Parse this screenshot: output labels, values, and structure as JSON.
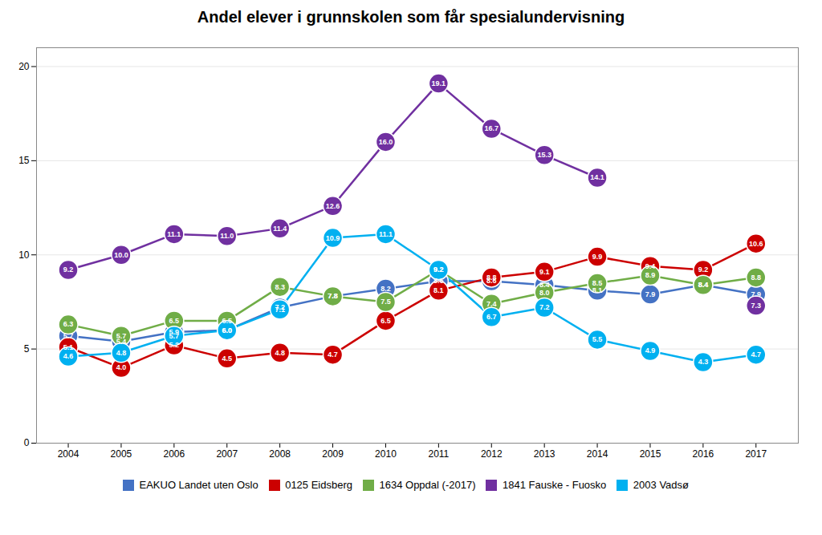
{
  "chart_data": {
    "type": "line",
    "title": "Andel elever i grunnskolen som får spesialundervisning",
    "x": [
      2004,
      2005,
      2006,
      2007,
      2008,
      2009,
      2010,
      2011,
      2012,
      2013,
      2014,
      2015,
      2016,
      2017
    ],
    "xlim": [
      2003.4,
      2017.8
    ],
    "xticks": [
      2004,
      2005,
      2006,
      2007,
      2008,
      2009,
      2010,
      2011,
      2012,
      2013,
      2014,
      2015,
      2016,
      2017
    ],
    "ylim": [
      0,
      21
    ],
    "yticks": [
      0,
      5,
      10,
      15,
      20
    ],
    "grid": true,
    "legend": "bottom",
    "data_labels": true,
    "marker": "circle",
    "series": [
      {
        "name": "EAKUO Landet uten Oslo",
        "color": "#4472C4",
        "values": [
          5.7,
          5.4,
          5.9,
          6.0,
          7.2,
          7.8,
          8.2,
          8.6,
          8.6,
          8.4,
          8.1,
          7.9,
          8.4,
          7.9
        ],
        "value_labels": [
          "5.7",
          "5.4",
          "5.9",
          "6.0",
          "7.2",
          "7.8",
          "8.2",
          "8.6",
          "8.6",
          "8.4",
          "8.1",
          "7.9",
          "8.4",
          "7.9"
        ]
      },
      {
        "name": "0125 Eidsberg",
        "color": "#CC0000",
        "values": [
          5.1,
          4.0,
          5.2,
          4.5,
          4.8,
          4.7,
          6.5,
          8.1,
          8.8,
          9.1,
          9.9,
          9.4,
          9.2,
          10.6
        ],
        "value_labels": [
          "5.1",
          "4.0",
          "5.2",
          "4.5",
          "4.8",
          "4.7",
          "6.5",
          "8.1",
          "8.8",
          "9.1",
          "9.9",
          "9.4",
          "9.2",
          "10.6"
        ]
      },
      {
        "name": "1634 Oppdal (-2017)",
        "color": "#70AD47",
        "values": [
          6.3,
          5.7,
          6.5,
          6.5,
          8.3,
          7.8,
          7.5,
          9.2,
          7.4,
          8.0,
          8.5,
          8.9,
          8.4,
          8.8
        ],
        "value_labels": [
          "6.3",
          "5.7",
          "6.5",
          "6.5",
          "8.3",
          "7.8",
          "7.5",
          "9.2",
          "7.4",
          "8.0",
          "8.5",
          "8.9",
          "8.4",
          "8.8"
        ]
      },
      {
        "name": "1841 Fauske - Fuosko",
        "color": "#7030A0",
        "values": [
          9.2,
          10.0,
          11.1,
          11.0,
          11.4,
          12.6,
          16.0,
          19.1,
          16.7,
          15.3,
          14.1,
          null,
          null,
          7.3
        ],
        "value_labels": [
          "9.2",
          "10.0",
          "11.1",
          "11.0",
          "11.4",
          "12.6",
          "16.0",
          "19.1",
          "16.7",
          "15.3",
          "14.1",
          null,
          null,
          "7.3"
        ]
      },
      {
        "name": "2003 Vadsø",
        "color": "#00B0F0",
        "values": [
          4.6,
          4.8,
          5.7,
          6.0,
          7.1,
          10.9,
          11.1,
          9.2,
          6.7,
          7.2,
          5.5,
          4.9,
          4.3,
          4.7
        ],
        "value_labels": [
          "4.6",
          "4.8",
          "5.7",
          "6.0",
          "7.1",
          "10.9",
          "11.1",
          "9.2",
          "6.7",
          "7.2",
          "5.5",
          "4.9",
          "4.3",
          "4.7"
        ]
      }
    ]
  }
}
